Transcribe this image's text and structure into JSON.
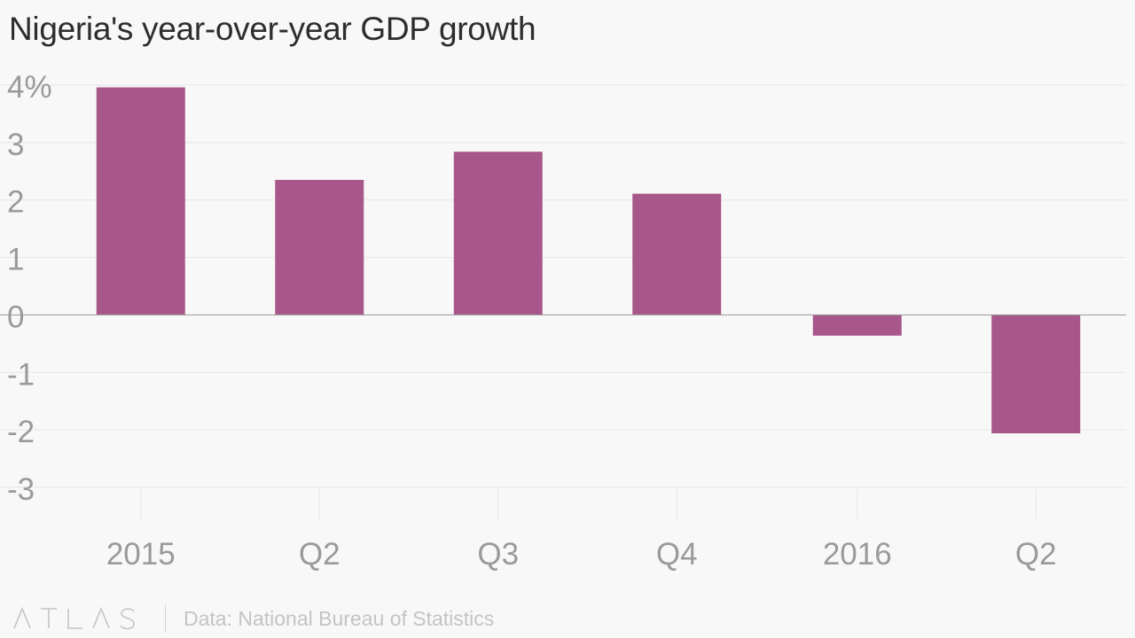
{
  "title": "Nigeria's year-over-year GDP growth",
  "chart_data": {
    "type": "bar",
    "title": "Nigeria's year-over-year GDP growth",
    "categories": [
      "2015",
      "Q2",
      "Q3",
      "Q4",
      "2016",
      "Q2"
    ],
    "values": [
      3.96,
      2.35,
      2.84,
      2.11,
      -0.36,
      -2.06
    ],
    "ylim": [
      -3,
      4
    ],
    "yticks": [
      4,
      3,
      2,
      1,
      0,
      -1,
      -2,
      -3
    ],
    "ytick_labels": [
      "4%",
      "3",
      "2",
      "1",
      "0",
      "-1",
      "-2",
      "-3"
    ],
    "xlabel": "",
    "ylabel": "",
    "grid": true,
    "bar_color": "#a8578a"
  },
  "footer": {
    "brand": "ATLAS",
    "source": "Data: National Bureau of Statistics"
  },
  "colors": {
    "background": "#f8f8f8",
    "bar": "#a8578a",
    "grid": "#e6e6e6",
    "zero_line": "#999999",
    "tick_label": "#9a9a9a"
  }
}
